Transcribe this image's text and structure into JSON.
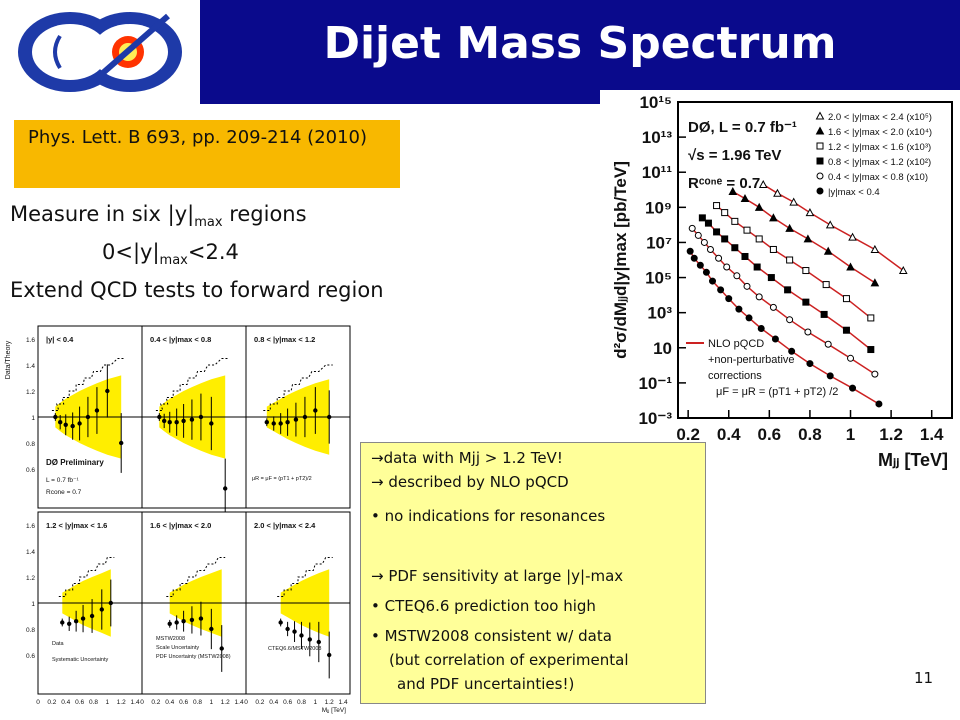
{
  "slide": {
    "logo_text": "DØ",
    "title": "Dijet Mass Spectrum",
    "reference": "Phys. Lett. B 693, pp. 209-214 (2010)",
    "line1_pre": "Measure in six |y|",
    "line1_sub": "max",
    "line1_post": " regions",
    "line2_pre": "0<|y|",
    "line2_sub": "max",
    "line2_post": "<2.4",
    "line3": "Extend QCD tests to forward region",
    "page_number": "11"
  },
  "notes": [
    "→data with Mjj > 1.2 TeV!",
    "→ described by NLO pQCD",
    "• no indications for resonances",
    "→ PDF sensitivity at large |y|-max",
    "• CTEQ6.6 prediction too high",
    "• MSTW2008 consistent w/ data",
    "(but correlation of experimental",
    "and PDF uncertainties!)"
  ],
  "chart_data": [
    {
      "type": "scatter",
      "experiment": "DØ, L = 0.7 fb⁻¹",
      "energy": "√s = 1.96 TeV",
      "cone": "Rᶜᵒⁿᵉ = 0.7",
      "xlabel": "Mⱼⱼ [TeV]",
      "ylabel": "d²σ/dMⱼⱼd|y|max [pb/TeV]",
      "ylog": true,
      "xlim": [
        0.15,
        1.5
      ],
      "ylim": [
        -3,
        15
      ],
      "xticks": [
        "0.2",
        "0.4",
        "0.6",
        "0.8",
        "1",
        "1.2",
        "1.4"
      ],
      "yticks": [
        "10⁻³",
        "10⁻¹",
        "10",
        "10³",
        "10⁵",
        "10⁷",
        "10⁹",
        "10¹¹",
        "10¹³",
        "10¹⁵"
      ],
      "ytick_values": [
        -3,
        -1,
        1,
        3,
        5,
        7,
        9,
        11,
        13,
        15
      ],
      "legend": [
        "2.0 < |y|max < 2.4 (x10⁵)",
        "1.6 < |y|max < 2.0 (x10⁴)",
        "1.2 < |y|max < 1.6 (x10³)",
        "0.8 < |y|max < 1.2 (x10²)",
        "0.4 < |y|max < 0.8 (x10)",
        "|y|max < 0.4"
      ],
      "theory_legend": [
        "NLO pQCD",
        "+non-perturbative",
        "corrections",
        "μF = μR = (pT1 + pT2) /2"
      ],
      "series": [
        {
          "name": "2.0 < |y|max < 2.4 (x10⁵)",
          "marker": "triangle-open",
          "x": [
            0.57,
            0.64,
            0.72,
            0.8,
            0.9,
            1.01,
            1.12,
            1.26
          ],
          "log10y": [
            10.3,
            9.8,
            9.3,
            8.7,
            8.0,
            7.3,
            6.6,
            5.4
          ]
        },
        {
          "name": "1.6 < |y|max < 2.0 (x10⁴)",
          "marker": "triangle-filled",
          "x": [
            0.42,
            0.48,
            0.55,
            0.62,
            0.7,
            0.79,
            0.89,
            1.0,
            1.12
          ],
          "log10y": [
            9.9,
            9.5,
            9.0,
            8.4,
            7.8,
            7.2,
            6.5,
            5.6,
            4.7
          ]
        },
        {
          "name": "1.2 < |y|max < 1.6 (x10³)",
          "marker": "square-open",
          "x": [
            0.34,
            0.38,
            0.43,
            0.49,
            0.55,
            0.62,
            0.7,
            0.78,
            0.88,
            0.98,
            1.1
          ],
          "log10y": [
            9.1,
            8.7,
            8.2,
            7.7,
            7.2,
            6.6,
            6.0,
            5.4,
            4.6,
            3.8,
            2.7
          ]
        },
        {
          "name": "0.8 < |y|max < 1.2 (x10²)",
          "marker": "square-filled",
          "x": [
            0.27,
            0.3,
            0.34,
            0.38,
            0.43,
            0.48,
            0.54,
            0.61,
            0.69,
            0.78,
            0.87,
            0.98,
            1.1
          ],
          "log10y": [
            8.4,
            8.1,
            7.6,
            7.2,
            6.7,
            6.2,
            5.6,
            5.0,
            4.3,
            3.6,
            2.9,
            2.0,
            0.9
          ]
        },
        {
          "name": "0.4 < |y|max < 0.8 (x10)",
          "marker": "circle-open",
          "x": [
            0.22,
            0.25,
            0.28,
            0.31,
            0.35,
            0.39,
            0.44,
            0.49,
            0.55,
            0.62,
            0.7,
            0.79,
            0.89,
            1.0,
            1.12
          ],
          "log10y": [
            7.8,
            7.4,
            7.0,
            6.6,
            6.1,
            5.6,
            5.1,
            4.5,
            3.9,
            3.3,
            2.6,
            1.9,
            1.2,
            0.4,
            -0.5
          ]
        },
        {
          "name": "|y|max < 0.4",
          "marker": "circle-filled",
          "x": [
            0.21,
            0.23,
            0.26,
            0.29,
            0.32,
            0.36,
            0.4,
            0.45,
            0.5,
            0.56,
            0.63,
            0.71,
            0.8,
            0.9,
            1.01,
            1.14
          ],
          "log10y": [
            6.5,
            6.1,
            5.7,
            5.3,
            4.8,
            4.3,
            3.8,
            3.2,
            2.7,
            2.1,
            1.5,
            0.8,
            0.1,
            -0.6,
            -1.3,
            -2.2
          ]
        }
      ]
    },
    {
      "type": "scatter",
      "description_panels": "Data/Theory ratio in six |y|max regions",
      "ylabel": "Data/Theory",
      "xlabel": "Mⱼⱼ [TeV]",
      "yticks": [
        "0.6",
        "0.8",
        "1",
        "1.2",
        "1.4",
        "1.6"
      ],
      "xticks": [
        "0",
        "0.2",
        "0.4",
        "0.6",
        "0.8",
        "1",
        "1.2",
        "1.4"
      ],
      "experiment_label": "DØ Preliminary",
      "lumi_label": "L = 0.7 fb⁻¹",
      "cone_label": "Rcone = 0.7",
      "scale_label": "μR = μF = (pT1 + pT2)/2",
      "legend": [
        "Data",
        "Systematic Uncertainty",
        "MSTW2008",
        "Scale Uncertainty",
        "PDF Uncertainty (MSTW2008)",
        "CTEQ6.6/MSTW2008"
      ],
      "panels": [
        {
          "label": "|y| < 0.4",
          "x": [
            0.25,
            0.32,
            0.4,
            0.5,
            0.6,
            0.72,
            0.85,
            1.0,
            1.2
          ],
          "ratio": [
            1.0,
            0.96,
            0.94,
            0.93,
            0.95,
            1.0,
            1.05,
            1.2,
            0.8
          ]
        },
        {
          "label": "0.4 < |y|max < 0.8",
          "x": [
            0.25,
            0.32,
            0.4,
            0.5,
            0.6,
            0.72,
            0.85,
            1.0,
            1.2
          ],
          "ratio": [
            1.0,
            0.97,
            0.96,
            0.96,
            0.97,
            0.98,
            1.0,
            0.95,
            0.45
          ]
        },
        {
          "label": "0.8 < |y|max < 1.2",
          "x": [
            0.3,
            0.4,
            0.5,
            0.6,
            0.72,
            0.85,
            1.0,
            1.2
          ],
          "ratio": [
            0.96,
            0.95,
            0.95,
            0.96,
            0.98,
            1.0,
            1.05,
            1.0
          ]
        },
        {
          "label": "1.2 < |y|max < 1.6",
          "x": [
            0.35,
            0.45,
            0.55,
            0.65,
            0.78,
            0.92,
            1.05
          ],
          "ratio": [
            0.85,
            0.84,
            0.86,
            0.88,
            0.9,
            0.95,
            1.0
          ]
        },
        {
          "label": "1.6 < |y|max < 2.0",
          "x": [
            0.4,
            0.5,
            0.6,
            0.72,
            0.85,
            1.0,
            1.15
          ],
          "ratio": [
            0.84,
            0.85,
            0.86,
            0.87,
            0.88,
            0.8,
            0.65
          ]
        },
        {
          "label": "2.0 < |y|max < 2.4",
          "x": [
            0.5,
            0.6,
            0.7,
            0.8,
            0.92,
            1.05,
            1.2
          ],
          "ratio": [
            0.85,
            0.8,
            0.78,
            0.75,
            0.72,
            0.7,
            0.6
          ]
        }
      ]
    }
  ],
  "colors": {
    "title_bar": "#0a0a8c",
    "ref_box": "#f8b800",
    "note_box": "#ffff99",
    "theory_line": "#cc2222",
    "band": "#ffee00"
  }
}
